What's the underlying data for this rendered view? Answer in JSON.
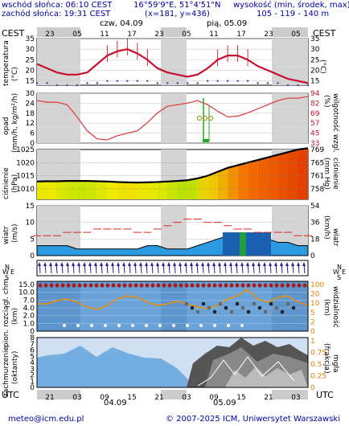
{
  "header": {
    "sunrise": "wschód słońca: 06:10 CEST",
    "sunset": "zachód słońca: 19:31 CEST",
    "coords": "16°59'9\"E, 51°4'51\"N",
    "grid": "(x=181, y=436)",
    "elev_label": "wysokość (min, środek, max)",
    "elev_value": "105 - 119 - 140 m",
    "tz_left": "CEST",
    "tz_right": "CEST",
    "day1": "czw, 04.09",
    "day2": "pią, 05.09"
  },
  "top_hours": [
    "23",
    "05",
    "11",
    "17",
    "23",
    "05",
    "11",
    "17",
    "23",
    "05"
  ],
  "bottom_hours": [
    "21",
    "03",
    "09",
    "15",
    "21",
    "03",
    "09",
    "15",
    "21",
    "03"
  ],
  "bottom_tz_left": "UTC",
  "bottom_tz_right": "UTC",
  "bottom_day1": "04.09",
  "bottom_day2": "05.09",
  "panels": {
    "temp": {
      "left": "temperatura",
      "left_unit": "(°C)",
      "right_unit": "(°C)",
      "ticks": [
        "35",
        "30",
        "25",
        "20",
        "15"
      ]
    },
    "precip": {
      "left": "opad",
      "left_unit": "(mm/h, kg/m²/h)",
      "right": "wilgotność wzgl.",
      "right_unit": "(%)",
      "ticks_left": [
        "30",
        "24",
        "18",
        "12",
        "6",
        "0"
      ],
      "ticks_right": [
        "94",
        "82",
        "69",
        "57",
        "45",
        "33"
      ]
    },
    "pressure": {
      "left": "ciśnienie",
      "left_unit": "(hPa)",
      "right": "ciśnienie",
      "right_unit": "(mm Hg)",
      "ticks_left": [
        "1025",
        "1020",
        "1015",
        "1010"
      ],
      "ticks_right": [
        "769",
        "765",
        "761",
        "758"
      ]
    },
    "wind": {
      "left": "wiatr",
      "left_unit": "(m/s)",
      "right": "wiatr",
      "right_unit": "(km/h)",
      "ticks_left": [
        "15",
        "10",
        "5",
        "0"
      ],
      "ticks_right": [
        "54",
        "36",
        "18",
        "0"
      ]
    },
    "winddir": {
      "left": "W",
      "right": "W",
      "n": "N",
      "s": "S",
      "e": "E"
    },
    "clouds": {
      "left": "pion. rozciągł. chm.",
      "left_unit": "(km)",
      "right": "widzialność",
      "right_unit": "(km)",
      "ticks_left": [
        "15.0",
        "10.0",
        "7.0",
        "4.0",
        "2.0",
        "1.0",
        "0"
      ],
      "ticks_right": [
        "100",
        "20",
        "10",
        "5",
        "2",
        "0"
      ]
    },
    "cover": {
      "left": "zachmurzenie",
      "left_unit": "(oktanty)",
      "right": "mgła",
      "right_unit": "(frakcja)",
      "ticks_left": [
        "8",
        "7",
        "6",
        "5",
        "4",
        "3",
        "2",
        "1",
        "0"
      ],
      "ticks_right": [
        "1",
        "0.75",
        "0.5",
        "0.25",
        "0"
      ]
    }
  },
  "footer": {
    "email": "meteo@icm.edu.pl",
    "copyright": "© 2007-2025 ICM, Uniwersytet Warszawski"
  },
  "chart_data": {
    "type": "line",
    "x": [
      "23",
      "01",
      "03",
      "05",
      "07",
      "09",
      "11",
      "13",
      "15",
      "17",
      "19",
      "21",
      "23",
      "01",
      "03",
      "05",
      "07",
      "09",
      "11",
      "13",
      "15",
      "17",
      "19",
      "21",
      "23",
      "01",
      "03",
      "05"
    ],
    "series": [
      {
        "values": [
          23,
          21,
          19,
          18,
          18,
          19,
          23,
          27,
          29,
          30,
          28,
          25,
          21,
          19,
          18,
          17,
          18,
          21,
          25,
          27,
          27,
          25,
          22,
          20,
          18,
          16,
          15,
          14
        ]
      },
      {
        "values": [
          14,
          14,
          13,
          13,
          13,
          14,
          14,
          15,
          15,
          15,
          15,
          15,
          14,
          14,
          14,
          14,
          14,
          15,
          15,
          15,
          15,
          15,
          14,
          14,
          14,
          13,
          13,
          13
        ]
      },
      {
        "values": [
          85,
          83,
          83,
          80,
          65,
          48,
          38,
          37,
          42,
          45,
          48,
          58,
          70,
          78,
          80,
          82,
          85,
          80,
          72,
          65,
          66,
          70,
          75,
          80,
          85,
          88,
          88,
          90
        ]
      },
      {
        "values": [
          1012.8,
          1012.9,
          1012.9,
          1013.0,
          1013.0,
          1013.0,
          1012.9,
          1012.8,
          1012.6,
          1012.5,
          1012.4,
          1012.5,
          1012.6,
          1012.8,
          1013.0,
          1013.3,
          1014.0,
          1015.0,
          1016.5,
          1018.0,
          1019.0,
          1020.0,
          1021.0,
          1022.0,
          1023.0,
          1024.0,
          1025.0,
          1025.5
        ]
      },
      {
        "values": [
          3,
          3,
          3,
          3,
          2,
          2,
          2,
          2,
          2,
          2,
          2,
          3,
          3,
          2,
          2,
          2,
          3,
          4,
          5,
          6,
          6,
          6,
          5,
          5,
          4,
          4,
          3,
          3
        ]
      },
      {
        "values": [
          6,
          6,
          6,
          7,
          7,
          7,
          8,
          8,
          8,
          8,
          7,
          7,
          8,
          9,
          10,
          11,
          11,
          10,
          10,
          9,
          8,
          8,
          7,
          7,
          7,
          7,
          6,
          6
        ]
      }
    ],
    "ylim_temp": [
      13,
      35
    ],
    "ylim_humidity": [
      33,
      94
    ],
    "ylim_pressure": [
      1006,
      1025
    ],
    "ylim_wind": [
      0,
      15
    ]
  }
}
